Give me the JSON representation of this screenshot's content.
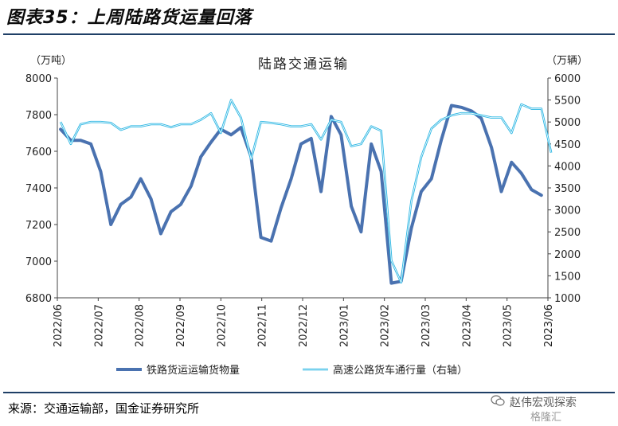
{
  "figure_title": "图表35：上周陆路货运量回落",
  "source_text": "来源：交通运输部，国金证券研究所",
  "watermark": {
    "name": "赵伟宏观探索",
    "sub": "格隆汇"
  },
  "colors": {
    "rail": "#4a72b0",
    "highway": "#2bb6e3",
    "rule": "#1f3f66"
  },
  "chart_data": {
    "type": "line",
    "title": "陆路交通运输",
    "left_unit": "（万吨）",
    "right_unit": "（万辆）",
    "y_left": {
      "min": 6800,
      "max": 8000,
      "ticks": [
        "8000",
        "7800",
        "7600",
        "7400",
        "7200",
        "7000",
        "6800"
      ]
    },
    "y_right": {
      "min": 1000,
      "max": 6000,
      "ticks": [
        "6000",
        "5500",
        "5000",
        "4500",
        "4000",
        "3500",
        "3000",
        "2500",
        "2000",
        "1500",
        "1000"
      ]
    },
    "x_ticks": [
      "2022/06",
      "2022/07",
      "2022/08",
      "2022/09",
      "2022/10",
      "2022/11",
      "2022/12",
      "2023/01",
      "2023/02",
      "2023/03",
      "2023/04",
      "2023/05",
      "2023/06"
    ],
    "x_range": [
      0,
      12
    ],
    "legend": {
      "placement": "bottom"
    },
    "series": [
      {
        "name": "铁路货运运输货物量",
        "axis": "left",
        "x": [
          0.08,
          0.33,
          0.57,
          0.82,
          1.06,
          1.31,
          1.55,
          1.8,
          2.04,
          2.29,
          2.53,
          2.78,
          3.02,
          3.27,
          3.51,
          3.76,
          4.0,
          4.25,
          4.49,
          4.74,
          4.98,
          5.23,
          5.47,
          5.72,
          5.96,
          6.21,
          6.45,
          6.7,
          6.94,
          7.19,
          7.43,
          7.68,
          7.92,
          8.17,
          8.41,
          8.66,
          8.9,
          9.15,
          9.39,
          9.64,
          9.88,
          10.13,
          10.37,
          10.62,
          10.86,
          11.11,
          11.35,
          11.6,
          11.84
        ],
        "values": [
          7720,
          7660,
          7660,
          7640,
          7490,
          7200,
          7310,
          7350,
          7450,
          7340,
          7150,
          7270,
          7310,
          7410,
          7570,
          7650,
          7720,
          7690,
          7730,
          7570,
          7130,
          7110,
          7290,
          7450,
          7640,
          7670,
          7380,
          7790,
          7690,
          7300,
          7160,
          7640,
          7490,
          6880,
          6890,
          7180,
          7380,
          7450,
          7660,
          7850,
          7840,
          7820,
          7780,
          7620,
          7380,
          7540,
          7480,
          7390,
          7360
        ]
      },
      {
        "name": "高速公路货车通行量（右轴）",
        "axis": "right",
        "x": [
          0.08,
          0.33,
          0.57,
          0.82,
          1.06,
          1.31,
          1.55,
          1.8,
          2.04,
          2.29,
          2.53,
          2.78,
          3.02,
          3.27,
          3.51,
          3.76,
          4.0,
          4.25,
          4.49,
          4.74,
          4.98,
          5.23,
          5.47,
          5.72,
          5.96,
          6.21,
          6.45,
          6.7,
          6.94,
          7.19,
          7.43,
          7.68,
          7.92,
          8.17,
          8.41,
          8.66,
          8.9,
          9.15,
          9.39,
          9.64,
          9.88,
          10.13,
          10.37,
          10.62,
          10.86,
          11.11,
          11.35,
          11.6,
          11.84,
          12.08
        ],
        "values": [
          5000,
          4500,
          4950,
          5000,
          5000,
          4980,
          4820,
          4900,
          4900,
          4950,
          4950,
          4880,
          4950,
          4950,
          5050,
          5200,
          4750,
          5500,
          5100,
          4150,
          5000,
          4980,
          4950,
          4900,
          4900,
          4950,
          4600,
          5050,
          5000,
          4450,
          4500,
          4900,
          4800,
          1850,
          1350,
          3200,
          4200,
          4850,
          5050,
          5150,
          5200,
          5200,
          5150,
          5100,
          5100,
          4750,
          5400,
          5300,
          5300,
          4300
        ]
      }
    ]
  }
}
